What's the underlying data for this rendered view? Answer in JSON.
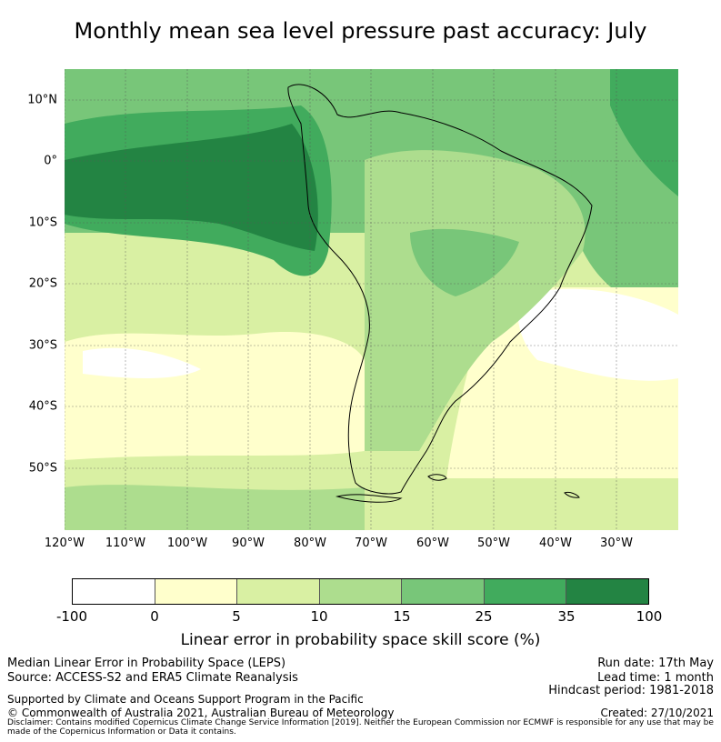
{
  "title": "Monthly mean sea level pressure past accuracy: July",
  "map": {
    "lat_labels": [
      "10°N",
      "0°",
      "10°S",
      "20°S",
      "30°S",
      "40°S",
      "50°S"
    ],
    "lon_labels": [
      "120°W",
      "110°W",
      "100°W",
      "90°W",
      "80°W",
      "70°W",
      "60°W",
      "50°W",
      "40°W",
      "30°W"
    ],
    "colors": {
      "c0": "#ffffff",
      "c1": "#ffffcc",
      "c2": "#d9f0a3",
      "c3": "#addd8e",
      "c4": "#78c679",
      "c5": "#41ab5d",
      "c6": "#238443"
    }
  },
  "colorbar": {
    "ticks": [
      "-100",
      "0",
      "5",
      "10",
      "15",
      "25",
      "35",
      "100"
    ],
    "colors": [
      "#ffffff",
      "#ffffcc",
      "#d9f0a3",
      "#addd8e",
      "#78c679",
      "#41ab5d",
      "#238443"
    ],
    "label": "Linear error in probability space skill score (%)"
  },
  "footer": {
    "left1": "Median Linear Error in Probability Space (LEPS)",
    "left2": "Source: ACCESS-S2 and ERA5 Climate Reanalysis",
    "left3": "Supported by Climate and Oceans Support Program in the Pacific",
    "left4": "© Commonwealth of Australia 2021, Australian Bureau of Meteorology",
    "right1": "Run date: 17th May",
    "right2": "Lead time: 1 month",
    "right3": "Hindcast period: 1981-2018",
    "right4": "Created: 27/10/2021",
    "disclaimer": "Disclaimer: Contains modified Copernicus Climate Change Service Information [2019]. Neither the European Commission nor ECMWF is responsible for any use that may be made of the Copernicus Information or Data it contains."
  }
}
